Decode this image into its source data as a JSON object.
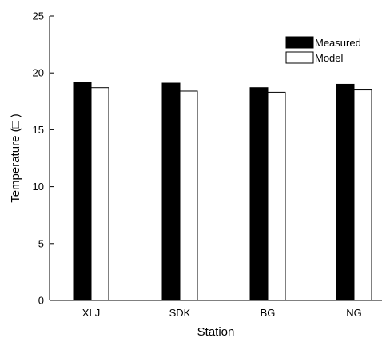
{
  "chart_data": {
    "type": "bar",
    "title": "",
    "xlabel": "Station",
    "ylabel": "Temperature (□ )",
    "categories": [
      "XLJ",
      "SDK",
      "BG",
      "NG"
    ],
    "series": [
      {
        "name": "Measured",
        "values": [
          19.2,
          19.1,
          18.7,
          19.0
        ],
        "color": "#000000"
      },
      {
        "name": "Model",
        "values": [
          18.7,
          18.4,
          18.3,
          18.5
        ],
        "color": "#ffffff"
      }
    ],
    "ylim": [
      0,
      25
    ],
    "yticks": [
      "0",
      "5",
      "10",
      "15",
      "20",
      "25"
    ],
    "grid": false,
    "legend_position": "top-right"
  }
}
